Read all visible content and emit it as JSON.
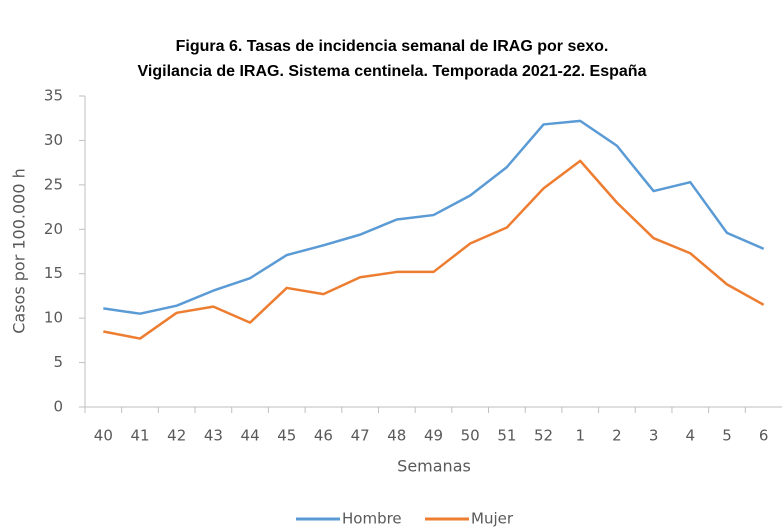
{
  "chart_data": {
    "type": "line",
    "title": [
      "Figura 6. Tasas de incidencia semanal de IRAG por sexo.",
      "Vigilancia de IRAG. Sistema centinela. Temporada 2021-22. España"
    ],
    "x_label": "Semanas",
    "y_label": "Casos por 100.000 h",
    "categories": [
      "40",
      "41",
      "42",
      "43",
      "44",
      "45",
      "46",
      "47",
      "48",
      "49",
      "50",
      "51",
      "52",
      "1",
      "2",
      "3",
      "4",
      "5",
      "6"
    ],
    "series": [
      {
        "name": "Hombre",
        "color": "#5b9bd5",
        "values": [
          11.1,
          10.5,
          11.4,
          13.1,
          14.5,
          17.1,
          18.2,
          19.4,
          21.1,
          21.6,
          23.8,
          27.0,
          31.8,
          32.2,
          29.4,
          24.3,
          25.3,
          19.6,
          17.8
        ]
      },
      {
        "name": "Mujer",
        "color": "#ed7d31",
        "values": [
          8.5,
          7.7,
          10.6,
          11.3,
          9.5,
          13.4,
          12.7,
          14.6,
          15.2,
          15.2,
          18.4,
          20.2,
          24.6,
          27.7,
          23.0,
          19.0,
          17.3,
          13.8,
          11.5
        ]
      }
    ],
    "ylim": [
      0,
      35
    ],
    "yticks": [
      0,
      5,
      10,
      15,
      20,
      25,
      30,
      35
    ],
    "grid": false,
    "legend": "bottom"
  }
}
